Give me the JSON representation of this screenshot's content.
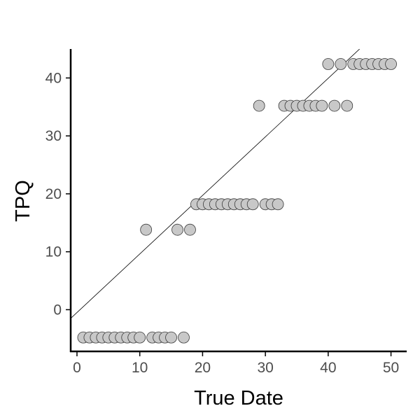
{
  "chart_data": {
    "type": "scatter",
    "title": "",
    "xlabel": "True Date",
    "ylabel": "TPQ",
    "xlim": [
      -1,
      52.5
    ],
    "ylim": [
      -7.2,
      45
    ],
    "xticks": [
      0,
      10,
      20,
      30,
      40,
      50
    ],
    "yticks": [
      0,
      10,
      20,
      30,
      40
    ],
    "grid": false,
    "legend": "none",
    "colors": {
      "point_fill": "#c8c8c8",
      "point_stroke": "#3a3a3a",
      "line": "#000000",
      "axis": "#000000",
      "tick_label": "#4d4d4d"
    },
    "series": [
      {
        "x": [
          1,
          2,
          3,
          4,
          5,
          6,
          7,
          8,
          9,
          10,
          12,
          13,
          14,
          15,
          17,
          11,
          16,
          18,
          19,
          20,
          21,
          22,
          23,
          24,
          25,
          26,
          27,
          28,
          30,
          31,
          32,
          29,
          33,
          34,
          35,
          36,
          37,
          38,
          39,
          41,
          43,
          40,
          42,
          44,
          45,
          46,
          47,
          48,
          49,
          50
        ],
        "y": [
          -4.8,
          -4.8,
          -4.8,
          -4.8,
          -4.8,
          -4.8,
          -4.8,
          -4.8,
          -4.8,
          -4.8,
          -4.8,
          -4.8,
          -4.8,
          -4.8,
          -4.8,
          13.8,
          13.8,
          13.8,
          18.2,
          18.2,
          18.2,
          18.2,
          18.2,
          18.2,
          18.2,
          18.2,
          18.2,
          18.2,
          18.2,
          18.2,
          18.2,
          35.2,
          35.2,
          35.2,
          35.2,
          35.2,
          35.2,
          35.2,
          35.2,
          35.2,
          35.2,
          42.4,
          42.4,
          42.4,
          42.4,
          42.4,
          42.4,
          42.4,
          42.4,
          42.4
        ]
      }
    ],
    "fit_line": {
      "type": "linear",
      "from": [
        -1,
        -1.5
      ],
      "to": [
        45,
        45
      ]
    }
  }
}
